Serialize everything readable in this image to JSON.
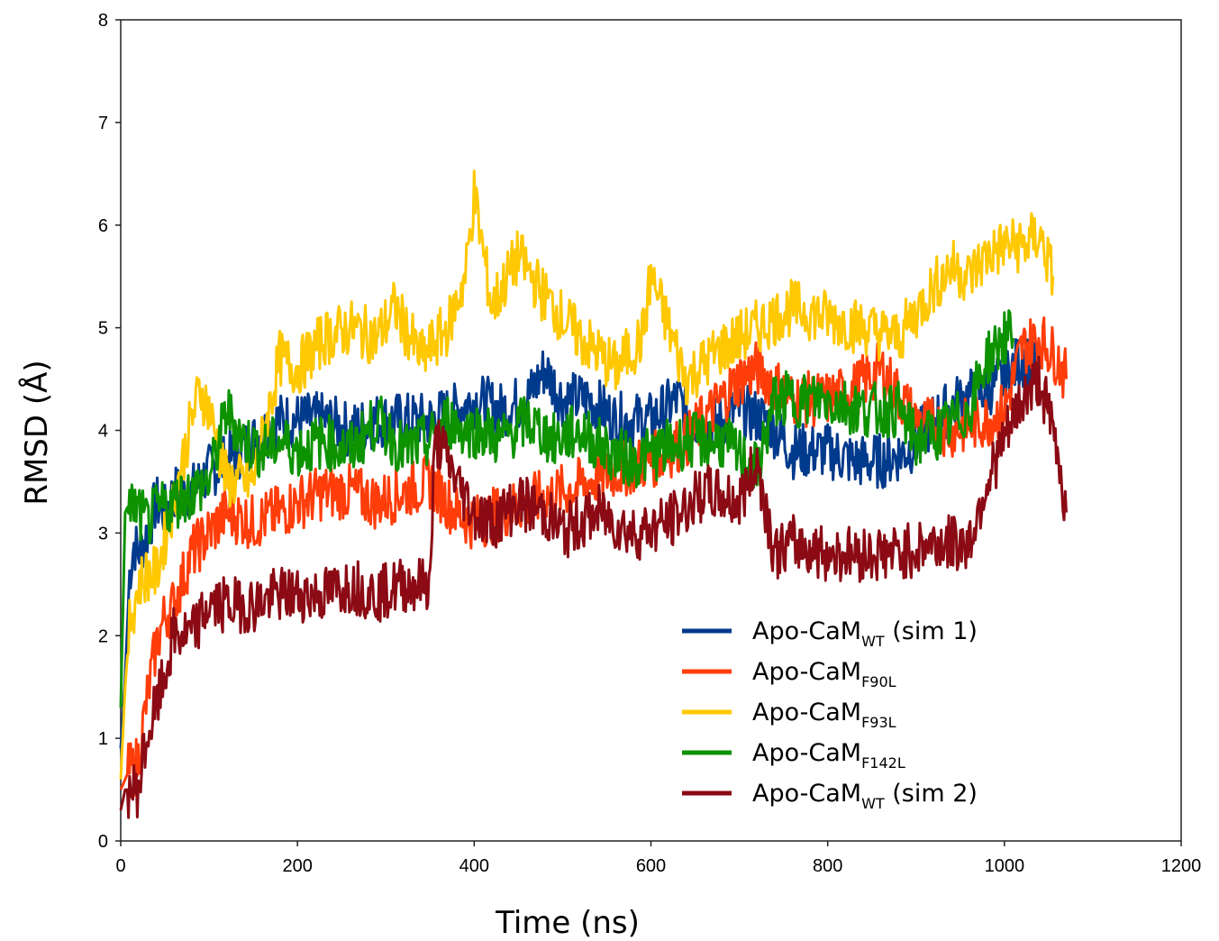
{
  "chart_data": {
    "type": "line",
    "title": "",
    "xlabel": "Time (ns)",
    "ylabel": "RMSD (Å)",
    "xlim": [
      0,
      1200
    ],
    "ylim": [
      0,
      8
    ],
    "xticks": [
      0,
      200,
      400,
      600,
      800,
      1000,
      1200
    ],
    "yticks": [
      0,
      1,
      2,
      3,
      4,
      5,
      6,
      7,
      8
    ],
    "grid": false,
    "legend_position": "bottom-right",
    "series": [
      {
        "name": "Apo-CaM",
        "subscript": "WT",
        "suffix": " (sim 1)",
        "color": "#003a8c",
        "x": [
          0,
          5,
          10,
          15,
          20,
          30,
          40,
          50,
          60,
          80,
          100,
          120,
          150,
          180,
          200,
          230,
          260,
          290,
          320,
          350,
          380,
          400,
          430,
          460,
          480,
          500,
          530,
          560,
          600,
          630,
          660,
          700,
          730,
          760,
          800,
          830,
          860,
          890,
          920,
          950,
          980,
          1000,
          1020,
          1040
        ],
        "y": [
          0.9,
          1.6,
          2.6,
          2.9,
          2.8,
          3.0,
          3.3,
          3.2,
          3.4,
          3.4,
          3.6,
          3.7,
          3.9,
          4.1,
          4.1,
          4.1,
          4.0,
          4.1,
          4.1,
          4.1,
          4.2,
          4.3,
          4.2,
          4.3,
          4.6,
          4.3,
          4.3,
          4.1,
          4.1,
          4.3,
          4.0,
          4.2,
          4.1,
          3.8,
          3.8,
          3.7,
          3.7,
          3.8,
          4.1,
          4.3,
          4.4,
          4.5,
          4.7,
          4.6
        ]
      },
      {
        "name": "Apo-CaM",
        "subscript": "F90L",
        "suffix": "",
        "color": "#ff3d0a",
        "x": [
          0,
          5,
          10,
          15,
          20,
          30,
          40,
          50,
          60,
          80,
          100,
          120,
          150,
          180,
          200,
          230,
          260,
          290,
          320,
          350,
          380,
          400,
          430,
          460,
          500,
          530,
          560,
          600,
          640,
          680,
          700,
          720,
          760,
          800,
          830,
          860,
          900,
          940,
          980,
          1000,
          1020,
          1040,
          1060,
          1070
        ],
        "y": [
          0.5,
          0.6,
          0.7,
          0.7,
          0.8,
          1.4,
          1.9,
          2.2,
          2.3,
          2.8,
          3.0,
          3.2,
          3.1,
          3.2,
          3.3,
          3.4,
          3.4,
          3.3,
          3.4,
          3.5,
          3.2,
          3.1,
          3.2,
          3.3,
          3.4,
          3.5,
          3.6,
          3.7,
          3.9,
          4.3,
          4.5,
          4.6,
          4.3,
          4.3,
          4.4,
          4.6,
          4.1,
          4.0,
          4.1,
          4.2,
          4.8,
          4.9,
          4.7,
          4.5
        ]
      },
      {
        "name": "Apo-CaM",
        "subscript": "F93L",
        "suffix": "",
        "color": "#ffc800",
        "x": [
          0,
          5,
          10,
          20,
          30,
          40,
          60,
          80,
          90,
          100,
          120,
          150,
          180,
          200,
          230,
          260,
          290,
          310,
          340,
          370,
          390,
          400,
          420,
          450,
          480,
          520,
          560,
          590,
          600,
          640,
          680,
          720,
          760,
          800,
          840,
          880,
          920,
          940,
          960,
          980,
          1000,
          1020,
          1040,
          1055
        ],
        "y": [
          0.6,
          1.5,
          2.1,
          2.5,
          2.6,
          2.6,
          3.3,
          4.1,
          4.4,
          4.2,
          3.5,
          3.5,
          4.7,
          4.6,
          4.9,
          5.0,
          4.9,
          5.2,
          4.7,
          5.0,
          5.5,
          6.3,
          5.2,
          5.7,
          5.3,
          4.9,
          4.6,
          4.9,
          5.5,
          4.5,
          4.8,
          5.0,
          5.2,
          5.1,
          5.0,
          4.9,
          5.4,
          5.6,
          5.5,
          5.7,
          5.8,
          5.8,
          5.9,
          5.5
        ]
      },
      {
        "name": "Apo-CaM",
        "subscript": "F142L",
        "suffix": "",
        "color": "#0d9200",
        "x": [
          0,
          5,
          10,
          20,
          30,
          40,
          60,
          80,
          100,
          120,
          140,
          160,
          180,
          200,
          230,
          260,
          290,
          320,
          350,
          370,
          390,
          410,
          430,
          460,
          490,
          520,
          550,
          580,
          610,
          640,
          680,
          720,
          740,
          760,
          800,
          840,
          880,
          900,
          930,
          960,
          980,
          1000,
          1010
        ],
        "y": [
          1.3,
          3.2,
          3.3,
          3.2,
          3.1,
          3.2,
          3.3,
          3.4,
          3.5,
          4.2,
          3.9,
          3.8,
          3.9,
          3.8,
          3.9,
          3.8,
          4.1,
          3.8,
          3.9,
          4.1,
          4.0,
          4.0,
          3.9,
          4.1,
          3.9,
          4.0,
          3.8,
          3.7,
          3.8,
          3.9,
          3.9,
          3.6,
          4.3,
          4.3,
          4.3,
          4.2,
          4.2,
          3.9,
          4.0,
          4.2,
          4.7,
          4.9,
          4.9
        ]
      },
      {
        "name": "Apo-CaM",
        "subscript": "WT",
        "suffix": " (sim 2)",
        "color": "#8b0a14",
        "x": [
          0,
          5,
          10,
          20,
          25,
          30,
          40,
          50,
          60,
          80,
          100,
          120,
          150,
          180,
          200,
          230,
          260,
          290,
          320,
          350,
          355,
          360,
          380,
          400,
          420,
          450,
          480,
          500,
          540,
          580,
          620,
          660,
          700,
          720,
          740,
          760,
          800,
          840,
          880,
          920,
          960,
          980,
          1000,
          1020,
          1040,
          1060,
          1070
        ],
        "y": [
          0.3,
          0.5,
          0.5,
          0.5,
          0.8,
          1.0,
          1.3,
          1.6,
          2.0,
          2.0,
          2.3,
          2.3,
          2.3,
          2.4,
          2.4,
          2.4,
          2.5,
          2.4,
          2.5,
          2.5,
          3.8,
          3.9,
          3.5,
          3.2,
          3.1,
          3.3,
          3.2,
          3.0,
          3.2,
          3.0,
          3.1,
          3.4,
          3.3,
          3.7,
          2.8,
          2.9,
          2.8,
          2.8,
          2.8,
          2.9,
          2.9,
          3.5,
          3.9,
          4.3,
          4.5,
          3.8,
          3.2
        ]
      }
    ]
  }
}
